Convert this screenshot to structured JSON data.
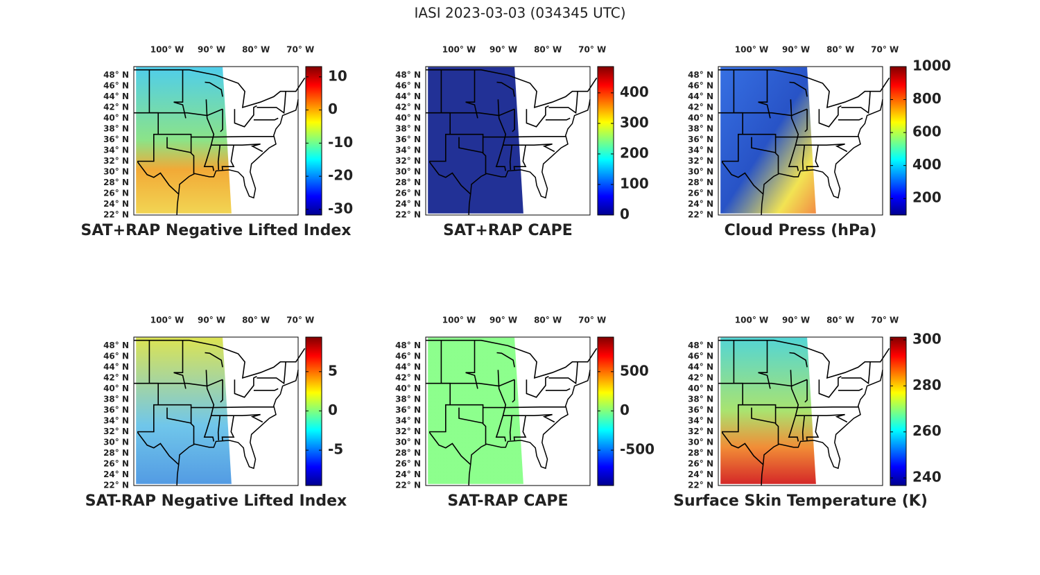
{
  "title": "IASI 2023-03-03 (034345 UTC)",
  "map": {
    "xlim": [
      -107.5,
      -70.5
    ],
    "ylim": [
      22,
      49.6
    ],
    "xticks": [
      {
        "value": -100,
        "label": "100° W"
      },
      {
        "value": -90,
        "label": "90° W"
      },
      {
        "value": -80,
        "label": "80° W"
      },
      {
        "value": -70,
        "label": "70° W"
      }
    ],
    "yticks": [
      {
        "value": 22,
        "label": "22° N"
      },
      {
        "value": 24,
        "label": "24° N"
      },
      {
        "value": 26,
        "label": "26° N"
      },
      {
        "value": 28,
        "label": "28° N"
      },
      {
        "value": 30,
        "label": "30° N"
      },
      {
        "value": 32,
        "label": "32° N"
      },
      {
        "value": 34,
        "label": "34° N"
      },
      {
        "value": 36,
        "label": "36° N"
      },
      {
        "value": 38,
        "label": "38° N"
      },
      {
        "value": 40,
        "label": "40° N"
      },
      {
        "value": 42,
        "label": "42° N"
      },
      {
        "value": 44,
        "label": "44° N"
      },
      {
        "value": 46,
        "label": "46° N"
      },
      {
        "value": 48,
        "label": "48° N"
      }
    ]
  },
  "panels": [
    {
      "title": "SAT+RAP Negative Lifted Index",
      "clim": [
        -31.7,
        13.1
      ],
      "ticks": [
        -30,
        -20,
        -10,
        0,
        10
      ]
    },
    {
      "title": "SAT+RAP CAPE",
      "clim": [
        0,
        486
      ],
      "ticks": [
        0,
        100,
        200,
        300,
        400
      ]
    },
    {
      "title": "Cloud Press (hPa)",
      "clim": [
        100,
        1000
      ],
      "ticks": [
        200,
        400,
        600,
        800,
        1000
      ]
    },
    {
      "title": "SAT-RAP Negative Lifted Index",
      "clim": [
        -9.5,
        9.4
      ],
      "ticks": [
        -5,
        0,
        5
      ]
    },
    {
      "title": "SAT-RAP CAPE",
      "clim": [
        -950,
        940
      ],
      "ticks": [
        -500,
        0,
        500
      ]
    },
    {
      "title": "Surface Skin Temperature (K)",
      "clim": [
        236.7,
        301.2
      ],
      "ticks": [
        240,
        260,
        280,
        300
      ]
    }
  ]
}
